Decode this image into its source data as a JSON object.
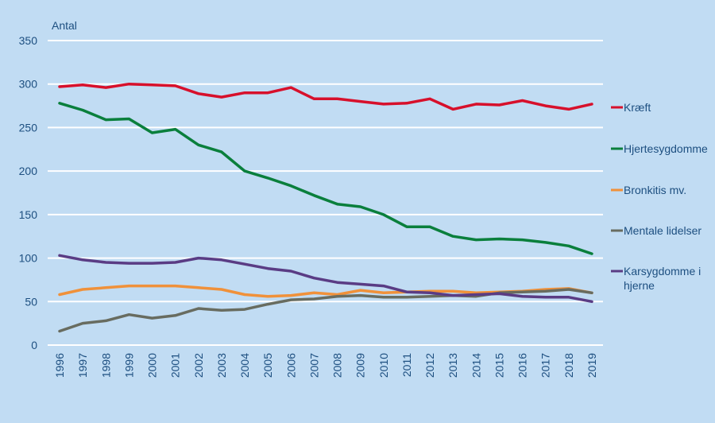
{
  "chart_data": {
    "type": "line",
    "title": "",
    "ylabel": "Antal",
    "xlabel": "",
    "ylim": [
      0,
      350
    ],
    "yticks": [
      "0",
      "50",
      "100",
      "150",
      "200",
      "250",
      "300",
      "350"
    ],
    "ytick_values": [
      0,
      50,
      100,
      150,
      200,
      250,
      300,
      350
    ],
    "grid": true,
    "legend_position": "right",
    "x": [
      "1996",
      "1997",
      "1998",
      "1999",
      "2000",
      "2001",
      "2002",
      "2003",
      "2004",
      "2005",
      "2006",
      "2007",
      "2008",
      "2009",
      "2010",
      "2011",
      "2012",
      "2013",
      "2014",
      "2015",
      "2016",
      "2017",
      "2018",
      "2019"
    ],
    "series": [
      {
        "name": "Kræft",
        "color": "#d7102b",
        "values": [
          297,
          299,
          296,
          300,
          299,
          298,
          289,
          285,
          290,
          290,
          296,
          283,
          283,
          280,
          277,
          278,
          283,
          271,
          277,
          276,
          281,
          275,
          271,
          277
        ]
      },
      {
        "name": "Hjertesygdomme",
        "color": "#0a7f3c",
        "values": [
          278,
          270,
          259,
          260,
          244,
          248,
          230,
          222,
          200,
          192,
          183,
          172,
          162,
          159,
          150,
          136,
          136,
          125,
          121,
          122,
          121,
          118,
          114,
          105
        ]
      },
      {
        "name": "Bronkitis mv.",
        "color": "#f0913a",
        "values": [
          58,
          64,
          66,
          68,
          68,
          68,
          66,
          64,
          58,
          56,
          57,
          60,
          58,
          63,
          60,
          61,
          62,
          62,
          60,
          61,
          62,
          64,
          65,
          60
        ]
      },
      {
        "name": "Mentale lidelser",
        "color": "#686c60",
        "values": [
          16,
          25,
          28,
          35,
          31,
          34,
          42,
          40,
          41,
          47,
          52,
          53,
          56,
          57,
          55,
          55,
          56,
          57,
          56,
          60,
          61,
          62,
          64,
          60
        ]
      },
      {
        "name": "Karsygdomme i hjerne",
        "legend_lines": [
          "Karsygdomme i",
          "hjerne"
        ],
        "color": "#5a3c84",
        "values": [
          103,
          98,
          95,
          94,
          94,
          95,
          100,
          98,
          93,
          88,
          85,
          77,
          72,
          70,
          68,
          61,
          60,
          57,
          58,
          59,
          56,
          55,
          55,
          50
        ]
      }
    ]
  }
}
